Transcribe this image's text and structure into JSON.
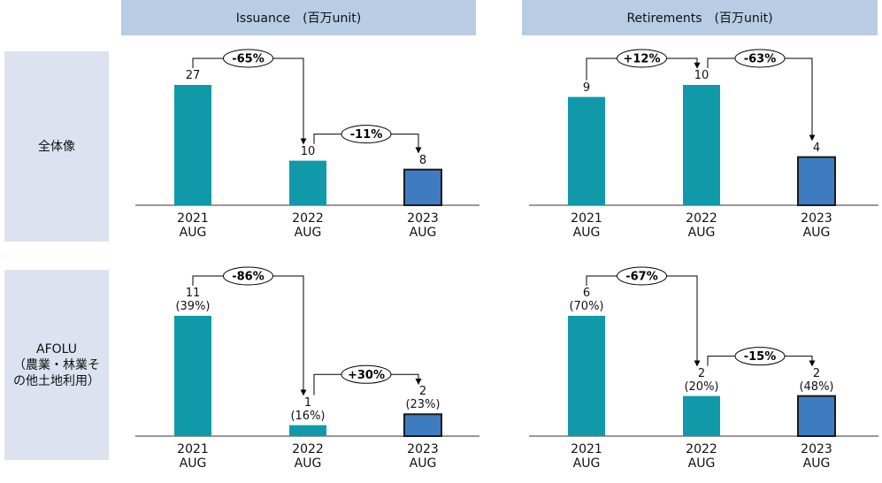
{
  "column_headers": [
    "Issuance　(百万unit)",
    "Retirements　(百万unit)"
  ],
  "row_labels": [
    "全体像",
    "AFOLU\n（農業・林業そ\nの他土地利用）"
  ],
  "chart_data": [
    {
      "type": "bar",
      "categories": [
        "2021\nAUG",
        "2022\nAUG",
        "2023\nAUG"
      ],
      "values": [
        27,
        10,
        8
      ],
      "colors": [
        "#109aa9",
        "#109aa9",
        "#3f7bc1"
      ],
      "outline_colors": [
        null,
        null,
        "#1a1a1a"
      ],
      "changes": [
        "-65%",
        "-11%"
      ]
    },
    {
      "type": "bar",
      "categories": [
        "2021\nAUG",
        "2022\nAUG",
        "2023\nAUG"
      ],
      "values": [
        9,
        10,
        4
      ],
      "colors": [
        "#109aa9",
        "#109aa9",
        "#3f7bc1"
      ],
      "outline_colors": [
        null,
        null,
        "#1a1a1a"
      ],
      "changes": [
        "+12%",
        "-63%"
      ]
    },
    {
      "type": "bar",
      "categories": [
        "2021\nAUG",
        "2022\nAUG",
        "2023\nAUG"
      ],
      "values": [
        11,
        1,
        2
      ],
      "value_labels": [
        "11\n(39%)",
        "1\n(16%)",
        "2\n(23%)"
      ],
      "colors": [
        "#109aa9",
        "#109aa9",
        "#3f7bc1"
      ],
      "outline_colors": [
        null,
        null,
        "#1a1a1a"
      ],
      "changes": [
        "-86%",
        "+30%"
      ]
    },
    {
      "type": "bar",
      "categories": [
        "2021\nAUG",
        "2022\nAUG",
        "2023\nAUG"
      ],
      "values": [
        6,
        2,
        2
      ],
      "value_labels": [
        "6\n(70%)",
        "2\n(20%)",
        "2\n(48%)"
      ],
      "colors": [
        "#109aa9",
        "#109aa9",
        "#3f7bc1"
      ],
      "outline_colors": [
        null,
        null,
        "#1a1a1a"
      ],
      "changes": [
        "-67%",
        "-15%"
      ]
    }
  ]
}
